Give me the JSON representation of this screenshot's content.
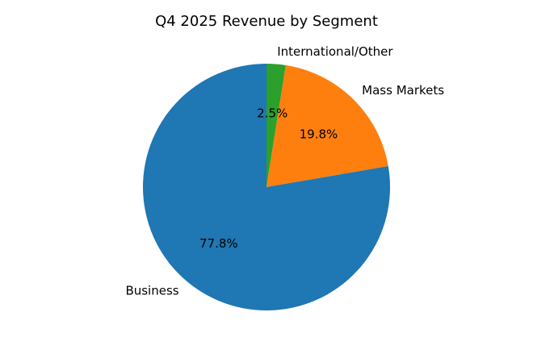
{
  "chart_data": {
    "type": "pie",
    "title": "Q4 2025 Revenue by Segment",
    "start_angle_deg": 90,
    "direction": "clockwise",
    "slices": [
      {
        "label": "International/Other",
        "value": 2.5,
        "pct_label": "2.5%",
        "color": "#2ca02c"
      },
      {
        "label": "Mass Markets",
        "value": 19.8,
        "pct_label": "19.8%",
        "color": "#ff7f0e"
      },
      {
        "label": "Business",
        "value": 77.8,
        "pct_label": "77.8%",
        "color": "#1f77b4"
      }
    ]
  }
}
